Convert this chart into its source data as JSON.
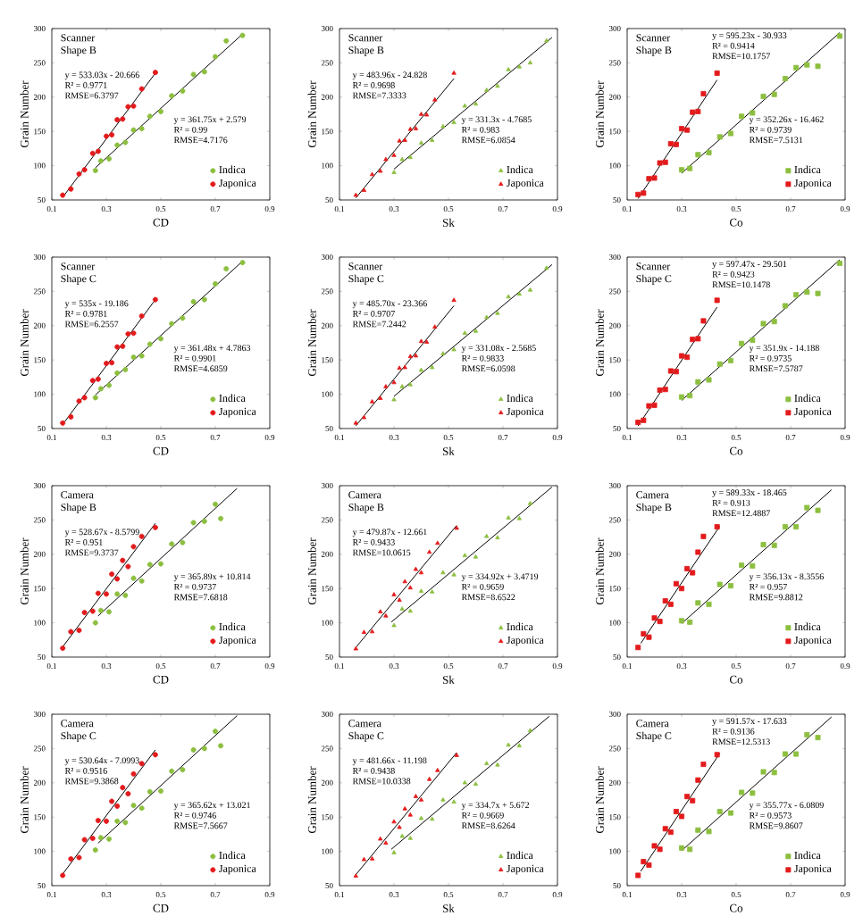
{
  "chart_data": [
    {
      "type": "scatter",
      "title": "Scanner",
      "subtitle": "Shape B",
      "xlabel": "CD",
      "ylabel": "Grain Number",
      "xlim": [
        0.1,
        0.9
      ],
      "ylim": [
        50,
        300
      ],
      "xticks": [
        0.1,
        0.3,
        0.5,
        0.7,
        0.9
      ],
      "yticks": [
        50,
        100,
        150,
        200,
        250,
        300
      ],
      "legend": "bottom right",
      "annotations": [
        "y = 533.03x - 20.666",
        "R² = 0.9771",
        "RMSE=6.3797",
        "y = 361.75x + 2.579",
        "R² = 0.99",
        "RMSE=4.7176"
      ],
      "series": [
        {
          "name": "Indica",
          "color": "#8cbf3f",
          "marker": "circle",
          "x": [
            0.26,
            0.28,
            0.31,
            0.34,
            0.37,
            0.4,
            0.43,
            0.46,
            0.5,
            0.54,
            0.58,
            0.62,
            0.66,
            0.7,
            0.74,
            0.8
          ],
          "values": [
            93,
            107,
            110,
            130,
            134,
            152,
            154,
            172,
            179,
            202,
            209,
            233,
            237,
            259,
            282,
            290
          ]
        },
        {
          "name": "Japonica",
          "color": "#e31a1c",
          "marker": "circle",
          "x": [
            0.14,
            0.17,
            0.2,
            0.22,
            0.25,
            0.27,
            0.3,
            0.32,
            0.34,
            0.36,
            0.38,
            0.4,
            0.43,
            0.48
          ],
          "values": [
            57,
            66,
            88,
            94,
            118,
            121,
            143,
            145,
            167,
            168,
            186,
            187,
            212,
            236
          ]
        },
        {
          "type": "line",
          "color": "#000000",
          "x": [
            0.26,
            0.8
          ],
          "values": [
            97,
            292
          ]
        },
        {
          "type": "line",
          "color": "#000000",
          "x": [
            0.14,
            0.48
          ],
          "values": [
            54,
            235
          ]
        }
      ]
    },
    {
      "type": "scatter",
      "title": "Scanner",
      "subtitle": "Shape B",
      "xlabel": "Sk",
      "ylabel": "Grain Number",
      "xlim": [
        0.1,
        0.9
      ],
      "ylim": [
        50,
        300
      ],
      "xticks": [
        0.1,
        0.3,
        0.5,
        0.7,
        0.9
      ],
      "yticks": [
        50,
        100,
        150,
        200,
        250,
        300
      ],
      "legend": "bottom right",
      "annotations": [
        "y = 483.96x - 24.828",
        "R² = 0.9698",
        "RMSE=7.3333",
        "y = 331.3x - 4.7685",
        "R² = 0.983",
        "RMSE=6.0854"
      ],
      "series": [
        {
          "name": "Indica",
          "color": "#8cbf3f",
          "marker": "triangle",
          "x": [
            0.3,
            0.33,
            0.36,
            0.4,
            0.44,
            0.48,
            0.52,
            0.56,
            0.6,
            0.64,
            0.68,
            0.72,
            0.76,
            0.8,
            0.86
          ],
          "values": [
            90,
            109,
            112,
            133,
            137,
            157,
            163,
            187,
            190,
            210,
            216,
            240,
            244,
            250,
            282
          ]
        },
        {
          "name": "Japonica",
          "color": "#e31a1c",
          "marker": "triangle",
          "x": [
            0.16,
            0.19,
            0.22,
            0.25,
            0.27,
            0.3,
            0.32,
            0.34,
            0.36,
            0.38,
            0.4,
            0.42,
            0.45,
            0.52
          ],
          "values": [
            57,
            64,
            87,
            92,
            109,
            115,
            136,
            137,
            153,
            154,
            175,
            174,
            196,
            235
          ]
        },
        {
          "type": "line",
          "color": "#000000",
          "x": [
            0.3,
            0.88
          ],
          "values": [
            95,
            287
          ]
        },
        {
          "type": "line",
          "color": "#000000",
          "x": [
            0.16,
            0.52
          ],
          "values": [
            53,
            227
          ]
        }
      ]
    },
    {
      "type": "scatter",
      "title": "Scanner",
      "subtitle": "Shape B",
      "xlabel": "Co",
      "ylabel": "Grain Number",
      "xlim": [
        0.1,
        0.9
      ],
      "ylim": [
        50,
        300
      ],
      "xticks": [
        0.1,
        0.3,
        0.5,
        0.7,
        0.9
      ],
      "yticks": [
        50,
        100,
        150,
        200,
        250,
        300
      ],
      "legend": "bottom right",
      "annotations": [
        "y = 595.23x - 30.933",
        "R² = 0.9414",
        "RMSE=10.1757",
        "y = 352.26x - 16.462",
        "R² = 0.9739",
        "RMSE=7.5131"
      ],
      "series": [
        {
          "name": "Indica",
          "color": "#8cbf3f",
          "marker": "square",
          "x": [
            0.3,
            0.33,
            0.36,
            0.4,
            0.44,
            0.48,
            0.52,
            0.56,
            0.6,
            0.64,
            0.68,
            0.72,
            0.76,
            0.8,
            0.88
          ],
          "values": [
            94,
            96,
            116,
            119,
            142,
            147,
            172,
            177,
            201,
            204,
            227,
            243,
            247,
            245,
            289
          ]
        },
        {
          "name": "Japonica",
          "color": "#e31a1c",
          "marker": "square",
          "x": [
            0.14,
            0.16,
            0.18,
            0.2,
            0.22,
            0.24,
            0.26,
            0.28,
            0.3,
            0.32,
            0.34,
            0.36,
            0.38,
            0.43
          ],
          "values": [
            58,
            60,
            81,
            82,
            104,
            105,
            132,
            131,
            154,
            152,
            178,
            179,
            205,
            235
          ]
        },
        {
          "type": "line",
          "color": "#000000",
          "x": [
            0.3,
            0.88
          ],
          "values": [
            89,
            294
          ]
        },
        {
          "type": "line",
          "color": "#000000",
          "x": [
            0.14,
            0.43
          ],
          "values": [
            52,
            225
          ]
        }
      ]
    },
    {
      "type": "scatter",
      "title": "Scanner",
      "subtitle": "Shape C",
      "xlabel": "CD",
      "ylabel": "Grain Number",
      "xlim": [
        0.1,
        0.9
      ],
      "ylim": [
        50,
        300
      ],
      "xticks": [
        0.1,
        0.3,
        0.5,
        0.7,
        0.9
      ],
      "yticks": [
        50,
        100,
        150,
        200,
        250,
        300
      ],
      "legend": "bottom right",
      "annotations": [
        "y = 535x - 19.186",
        "R² = 0.9781",
        "RMSE=6.2557",
        "y = 361.48x + 4.7863",
        "R² = 0.9901",
        "RMSE=4.6859"
      ],
      "series": [
        {
          "name": "Indica",
          "color": "#8cbf3f",
          "marker": "circle",
          "x": [
            0.26,
            0.28,
            0.31,
            0.34,
            0.37,
            0.4,
            0.43,
            0.46,
            0.5,
            0.54,
            0.58,
            0.62,
            0.66,
            0.7,
            0.74,
            0.8
          ],
          "values": [
            95,
            108,
            113,
            131,
            136,
            154,
            156,
            173,
            181,
            203,
            211,
            235,
            238,
            261,
            283,
            292
          ]
        },
        {
          "name": "Japonica",
          "color": "#e31a1c",
          "marker": "circle",
          "x": [
            0.14,
            0.17,
            0.2,
            0.22,
            0.25,
            0.27,
            0.3,
            0.32,
            0.34,
            0.36,
            0.38,
            0.4,
            0.43,
            0.48
          ],
          "values": [
            58,
            67,
            90,
            95,
            120,
            122,
            145,
            146,
            169,
            170,
            188,
            189,
            214,
            238
          ]
        },
        {
          "type": "line",
          "color": "#000000",
          "x": [
            0.26,
            0.8
          ],
          "values": [
            99,
            294
          ]
        },
        {
          "type": "line",
          "color": "#000000",
          "x": [
            0.14,
            0.48
          ],
          "values": [
            56,
            238
          ]
        }
      ]
    },
    {
      "type": "scatter",
      "title": "Scanner",
      "subtitle": "Shape C",
      "xlabel": "Sk",
      "ylabel": "Grain Number",
      "xlim": [
        0.1,
        0.9
      ],
      "ylim": [
        50,
        300
      ],
      "xticks": [
        0.1,
        0.3,
        0.5,
        0.7,
        0.9
      ],
      "yticks": [
        50,
        100,
        150,
        200,
        250,
        300
      ],
      "legend": "bottom right",
      "annotations": [
        "y = 485.70x - 23.366",
        "R² = 0.9707",
        "RMSE=7.2442",
        "y = 331.08x - 2.5685",
        "R² = 0.9833",
        "RMSE=6.0598"
      ],
      "series": [
        {
          "name": "Indica",
          "color": "#8cbf3f",
          "marker": "triangle",
          "x": [
            0.3,
            0.33,
            0.36,
            0.4,
            0.44,
            0.48,
            0.52,
            0.56,
            0.6,
            0.64,
            0.68,
            0.72,
            0.76,
            0.8,
            0.86
          ],
          "values": [
            92,
            111,
            114,
            135,
            139,
            159,
            165,
            189,
            192,
            212,
            218,
            242,
            246,
            252,
            284
          ]
        },
        {
          "name": "Japonica",
          "color": "#e31a1c",
          "marker": "triangle",
          "x": [
            0.16,
            0.19,
            0.22,
            0.25,
            0.27,
            0.3,
            0.32,
            0.34,
            0.36,
            0.38,
            0.4,
            0.42,
            0.45,
            0.52
          ],
          "values": [
            58,
            66,
            89,
            94,
            111,
            117,
            138,
            139,
            155,
            156,
            177,
            176,
            198,
            237
          ]
        },
        {
          "type": "line",
          "color": "#000000",
          "x": [
            0.3,
            0.88
          ],
          "values": [
            97,
            289
          ]
        },
        {
          "type": "line",
          "color": "#000000",
          "x": [
            0.16,
            0.52
          ],
          "values": [
            54,
            229
          ]
        }
      ]
    },
    {
      "type": "scatter",
      "title": "Scanner",
      "subtitle": "Shape C",
      "xlabel": "Co",
      "ylabel": "Grain Number",
      "xlim": [
        0.1,
        0.9
      ],
      "ylim": [
        50,
        300
      ],
      "xticks": [
        0.1,
        0.3,
        0.5,
        0.7,
        0.9
      ],
      "yticks": [
        50,
        100,
        150,
        200,
        250,
        300
      ],
      "legend": "bottom right",
      "annotations": [
        "y = 597.47x - 29.501",
        "R² = 0.9423",
        "RMSE=10.1478",
        "y = 351.9x - 14.188",
        "R² = 0.9735",
        "RMSE=7.5787"
      ],
      "series": [
        {
          "name": "Indica",
          "color": "#8cbf3f",
          "marker": "square",
          "x": [
            0.3,
            0.33,
            0.36,
            0.4,
            0.44,
            0.48,
            0.52,
            0.56,
            0.6,
            0.64,
            0.68,
            0.72,
            0.76,
            0.8,
            0.88
          ],
          "values": [
            96,
            98,
            118,
            121,
            144,
            149,
            174,
            179,
            203,
            206,
            229,
            245,
            249,
            247,
            291
          ]
        },
        {
          "name": "Japonica",
          "color": "#e31a1c",
          "marker": "square",
          "x": [
            0.14,
            0.16,
            0.18,
            0.2,
            0.22,
            0.24,
            0.26,
            0.28,
            0.3,
            0.32,
            0.34,
            0.36,
            0.38,
            0.43
          ],
          "values": [
            59,
            62,
            83,
            84,
            106,
            107,
            134,
            133,
            156,
            154,
            180,
            181,
            207,
            237
          ]
        },
        {
          "type": "line",
          "color": "#000000",
          "x": [
            0.3,
            0.88
          ],
          "values": [
            91,
            296
          ]
        },
        {
          "type": "line",
          "color": "#000000",
          "x": [
            0.14,
            0.43
          ],
          "values": [
            54,
            227
          ]
        }
      ]
    },
    {
      "type": "scatter",
      "title": "Camera",
      "subtitle": "Shape B",
      "xlabel": "CD",
      "ylabel": "Grain Number",
      "xlim": [
        0.1,
        0.9
      ],
      "ylim": [
        50,
        300
      ],
      "xticks": [
        0.1,
        0.3,
        0.5,
        0.7,
        0.9
      ],
      "yticks": [
        50,
        100,
        150,
        200,
        250,
        300
      ],
      "legend": "bottom right",
      "annotations": [
        "y = 528.67x - 8.5799",
        "R² = 0.951",
        "RMSE=9.3737",
        "y = 365.89x + 10.814",
        "R² = 0.9737",
        "RMSE=7.6818"
      ],
      "series": [
        {
          "name": "Indica",
          "color": "#8cbf3f",
          "marker": "circle",
          "x": [
            0.26,
            0.28,
            0.31,
            0.34,
            0.37,
            0.4,
            0.43,
            0.46,
            0.5,
            0.54,
            0.58,
            0.62,
            0.66,
            0.7,
            0.72
          ],
          "values": [
            100,
            118,
            116,
            142,
            140,
            165,
            161,
            185,
            186,
            215,
            217,
            246,
            248,
            273,
            252
          ]
        },
        {
          "name": "Japonica",
          "color": "#e31a1c",
          "marker": "circle",
          "x": [
            0.14,
            0.17,
            0.2,
            0.22,
            0.25,
            0.27,
            0.3,
            0.32,
            0.34,
            0.36,
            0.38,
            0.4,
            0.43,
            0.48
          ],
          "values": [
            63,
            87,
            89,
            115,
            117,
            143,
            142,
            171,
            164,
            191,
            182,
            211,
            226,
            239
          ]
        },
        {
          "type": "line",
          "color": "#000000",
          "x": [
            0.27,
            0.78
          ],
          "values": [
            110,
            296
          ]
        },
        {
          "type": "line",
          "color": "#000000",
          "x": [
            0.14,
            0.48
          ],
          "values": [
            65,
            245
          ]
        }
      ]
    },
    {
      "type": "scatter",
      "title": "Camera",
      "subtitle": "Shape B",
      "xlabel": "Sk",
      "ylabel": "Grain Number",
      "xlim": [
        0.1,
        0.9
      ],
      "ylim": [
        50,
        300
      ],
      "xticks": [
        0.1,
        0.3,
        0.5,
        0.7,
        0.9
      ],
      "yticks": [
        50,
        100,
        150,
        200,
        250,
        300
      ],
      "legend": "bottom right",
      "annotations": [
        "y = 479.87x - 12.661",
        "R² = 0.9433",
        "RMSE=10.0615",
        "y = 334.92x + 3.4719",
        "R² = 0.9659",
        "RMSE=8.6522"
      ],
      "series": [
        {
          "name": "Indica",
          "color": "#8cbf3f",
          "marker": "triangle",
          "x": [
            0.3,
            0.33,
            0.36,
            0.4,
            0.44,
            0.48,
            0.52,
            0.56,
            0.6,
            0.64,
            0.68,
            0.72,
            0.76,
            0.8
          ],
          "values": [
            96,
            120,
            117,
            146,
            145,
            173,
            170,
            198,
            196,
            226,
            224,
            253,
            252,
            274
          ]
        },
        {
          "name": "Japonica",
          "color": "#e31a1c",
          "marker": "triangle",
          "x": [
            0.16,
            0.19,
            0.22,
            0.25,
            0.27,
            0.3,
            0.32,
            0.34,
            0.36,
            0.38,
            0.4,
            0.43,
            0.46,
            0.53
          ],
          "values": [
            62,
            86,
            87,
            116,
            110,
            141,
            133,
            160,
            151,
            178,
            173,
            203,
            216,
            238
          ]
        },
        {
          "type": "line",
          "color": "#000000",
          "x": [
            0.29,
            0.88
          ],
          "values": [
            101,
            298
          ]
        },
        {
          "type": "line",
          "color": "#000000",
          "x": [
            0.16,
            0.53
          ],
          "values": [
            64,
            242
          ]
        }
      ]
    },
    {
      "type": "scatter",
      "title": "Camera",
      "subtitle": "Shape B",
      "xlabel": "Co",
      "ylabel": "Grain Number",
      "xlim": [
        0.1,
        0.9
      ],
      "ylim": [
        50,
        300
      ],
      "xticks": [
        0.1,
        0.3,
        0.5,
        0.7,
        0.9
      ],
      "yticks": [
        50,
        100,
        150,
        200,
        250,
        300
      ],
      "legend": "bottom right",
      "annotations": [
        "y = 589.33x - 18.465",
        "R² = 0.913",
        "RMSE=12.4887",
        "y = 356.13x - 8.3556",
        "R² = 0.957",
        "RMSE=9.8812"
      ],
      "series": [
        {
          "name": "Indica",
          "color": "#8cbf3f",
          "marker": "square",
          "x": [
            0.3,
            0.33,
            0.36,
            0.4,
            0.44,
            0.48,
            0.52,
            0.56,
            0.6,
            0.64,
            0.68,
            0.72,
            0.76,
            0.8
          ],
          "values": [
            103,
            101,
            129,
            127,
            156,
            154,
            184,
            183,
            214,
            213,
            240,
            240,
            268,
            264
          ]
        },
        {
          "name": "Japonica",
          "color": "#e31a1c",
          "marker": "square",
          "x": [
            0.14,
            0.16,
            0.18,
            0.2,
            0.22,
            0.24,
            0.26,
            0.28,
            0.3,
            0.32,
            0.34,
            0.36,
            0.38,
            0.43
          ],
          "values": [
            64,
            84,
            79,
            107,
            102,
            132,
            127,
            157,
            150,
            179,
            173,
            203,
            226,
            240
          ]
        },
        {
          "type": "line",
          "color": "#000000",
          "x": [
            0.3,
            0.85
          ],
          "values": [
            99,
            294
          ]
        },
        {
          "type": "line",
          "color": "#000000",
          "x": [
            0.15,
            0.44
          ],
          "values": [
            70,
            241
          ]
        }
      ]
    },
    {
      "type": "scatter",
      "title": "Camera",
      "subtitle": "Shape C",
      "xlabel": "CD",
      "ylabel": "Grain Number",
      "xlim": [
        0.1,
        0.9
      ],
      "ylim": [
        50,
        300
      ],
      "xticks": [
        0.1,
        0.3,
        0.5,
        0.7,
        0.9
      ],
      "yticks": [
        50,
        100,
        150,
        200,
        250,
        300
      ],
      "legend": "bottom right",
      "annotations": [
        "y = 530.64x - 7.0993",
        "R² = 0.9516",
        "RMSE=9.3868",
        "y = 365.62x + 13.021",
        "R² = 0.9746",
        "RMSE=7.5667"
      ],
      "series": [
        {
          "name": "Indica",
          "color": "#8cbf3f",
          "marker": "circle",
          "x": [
            0.26,
            0.28,
            0.31,
            0.34,
            0.37,
            0.4,
            0.43,
            0.46,
            0.5,
            0.54,
            0.58,
            0.62,
            0.66,
            0.7,
            0.72
          ],
          "values": [
            102,
            120,
            118,
            144,
            142,
            167,
            163,
            187,
            188,
            217,
            219,
            248,
            250,
            275,
            254
          ]
        },
        {
          "name": "Japonica",
          "color": "#e31a1c",
          "marker": "circle",
          "x": [
            0.14,
            0.17,
            0.2,
            0.22,
            0.25,
            0.27,
            0.3,
            0.32,
            0.34,
            0.36,
            0.38,
            0.4,
            0.43,
            0.48
          ],
          "values": [
            65,
            89,
            91,
            117,
            119,
            145,
            144,
            173,
            166,
            193,
            184,
            213,
            228,
            241
          ]
        },
        {
          "type": "line",
          "color": "#000000",
          "x": [
            0.27,
            0.78
          ],
          "values": [
            112,
            298
          ]
        },
        {
          "type": "line",
          "color": "#000000",
          "x": [
            0.14,
            0.48
          ],
          "values": [
            67,
            248
          ]
        }
      ]
    },
    {
      "type": "scatter",
      "title": "Camera",
      "subtitle": "Shape C",
      "xlabel": "Sk",
      "ylabel": "Grain Number",
      "xlim": [
        0.1,
        0.9
      ],
      "ylim": [
        50,
        300
      ],
      "xticks": [
        0.1,
        0.3,
        0.5,
        0.7,
        0.9
      ],
      "yticks": [
        50,
        100,
        150,
        200,
        250,
        300
      ],
      "legend": "bottom right",
      "annotations": [
        "y = 481.66x - 11.198",
        "R² = 0.9438",
        "RMSE=10.0338",
        "y = 334.7x + 5.672",
        "R² = 0.9669",
        "RMSE=8.6264"
      ],
      "series": [
        {
          "name": "Indica",
          "color": "#8cbf3f",
          "marker": "triangle",
          "x": [
            0.3,
            0.33,
            0.36,
            0.4,
            0.44,
            0.48,
            0.52,
            0.56,
            0.6,
            0.64,
            0.68,
            0.72,
            0.76,
            0.8
          ],
          "values": [
            98,
            122,
            119,
            148,
            147,
            175,
            172,
            200,
            198,
            228,
            226,
            255,
            254,
            276
          ]
        },
        {
          "name": "Japonica",
          "color": "#e31a1c",
          "marker": "triangle",
          "x": [
            0.16,
            0.19,
            0.22,
            0.25,
            0.27,
            0.3,
            0.32,
            0.34,
            0.36,
            0.38,
            0.4,
            0.43,
            0.46,
            0.53
          ],
          "values": [
            64,
            88,
            89,
            118,
            112,
            143,
            135,
            162,
            153,
            180,
            175,
            205,
            218,
            240
          ]
        },
        {
          "type": "line",
          "color": "#000000",
          "x": [
            0.29,
            0.87
          ],
          "values": [
            103,
            297
          ]
        },
        {
          "type": "line",
          "color": "#000000",
          "x": [
            0.16,
            0.53
          ],
          "values": [
            66,
            244
          ]
        }
      ]
    },
    {
      "type": "scatter",
      "title": "Camera",
      "subtitle": "Shape C",
      "xlabel": "Co",
      "ylabel": "Grain Number",
      "xlim": [
        0.1,
        0.9
      ],
      "ylim": [
        50,
        300
      ],
      "xticks": [
        0.1,
        0.3,
        0.5,
        0.7,
        0.9
      ],
      "yticks": [
        50,
        100,
        150,
        200,
        250,
        300
      ],
      "legend": "bottom right",
      "annotations": [
        "y = 591.57x - 17.633",
        "R² = 0.9136",
        "RMSE=12.5313",
        "y = 355.77x - 6.0809",
        "R² = 0.9573",
        "RMSE=9.8607"
      ],
      "series": [
        {
          "name": "Indica",
          "color": "#8cbf3f",
          "marker": "square",
          "x": [
            0.3,
            0.33,
            0.36,
            0.4,
            0.44,
            0.48,
            0.52,
            0.56,
            0.6,
            0.64,
            0.68,
            0.72,
            0.76,
            0.8
          ],
          "values": [
            105,
            103,
            131,
            129,
            158,
            156,
            186,
            185,
            216,
            215,
            242,
            242,
            270,
            266
          ]
        },
        {
          "name": "Japonica",
          "color": "#e31a1c",
          "marker": "square",
          "x": [
            0.14,
            0.16,
            0.18,
            0.2,
            0.22,
            0.24,
            0.26,
            0.28,
            0.3,
            0.32,
            0.34,
            0.36,
            0.38,
            0.43
          ],
          "values": [
            65,
            85,
            80,
            108,
            103,
            133,
            128,
            158,
            151,
            180,
            174,
            204,
            227,
            241
          ]
        },
        {
          "type": "line",
          "color": "#000000",
          "x": [
            0.3,
            0.85
          ],
          "values": [
            101,
            296
          ]
        },
        {
          "type": "line",
          "color": "#000000",
          "x": [
            0.15,
            0.44
          ],
          "values": [
            71,
            243
          ]
        }
      ]
    }
  ]
}
